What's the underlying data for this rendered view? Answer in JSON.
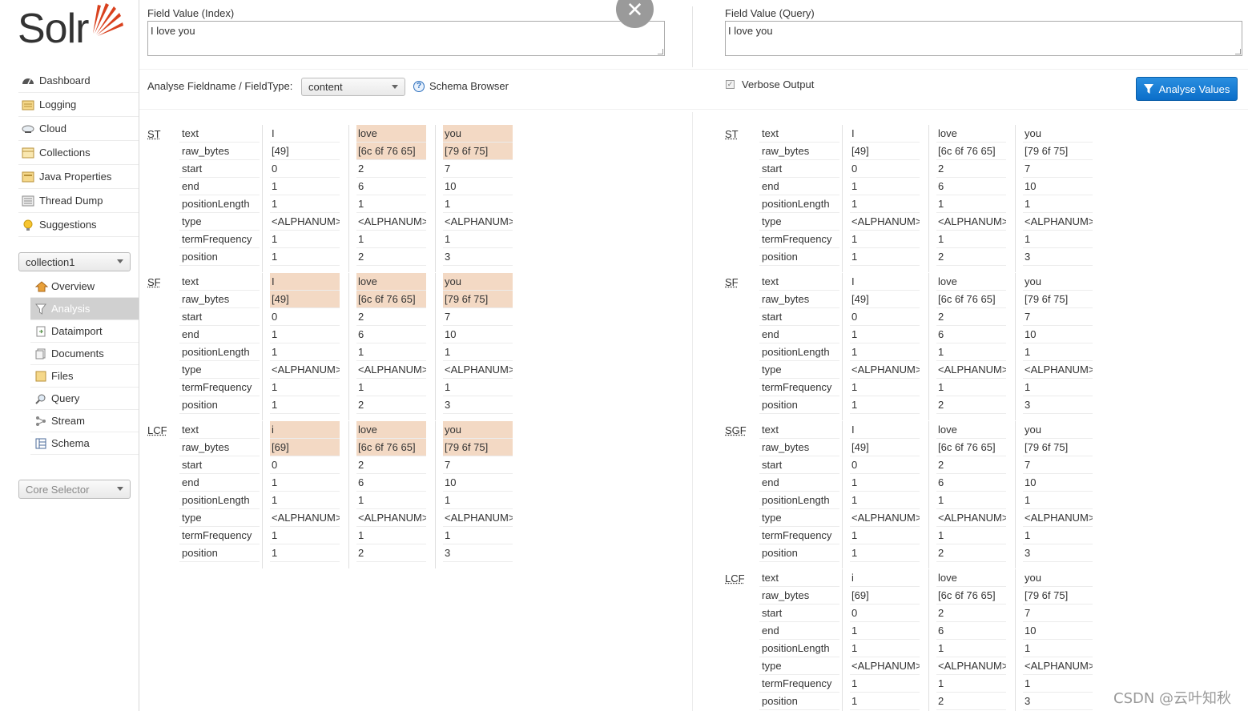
{
  "brand": {
    "logo_text": "Solr",
    "accent": "#d9411e"
  },
  "nav": [
    {
      "label": "Dashboard",
      "icon": "dashboard-icon"
    },
    {
      "label": "Logging",
      "icon": "logging-icon"
    },
    {
      "label": "Cloud",
      "icon": "cloud-icon"
    },
    {
      "label": "Collections",
      "icon": "collections-icon"
    },
    {
      "label": "Java Properties",
      "icon": "java-properties-icon"
    },
    {
      "label": "Thread Dump",
      "icon": "thread-dump-icon"
    },
    {
      "label": "Suggestions",
      "icon": "lightbulb-icon"
    }
  ],
  "collection_select": {
    "value": "collection1"
  },
  "subnav": [
    {
      "label": "Overview",
      "icon": "home-icon",
      "active": false
    },
    {
      "label": "Analysis",
      "icon": "filter-icon",
      "active": true
    },
    {
      "label": "Dataimport",
      "icon": "dataimport-icon",
      "active": false
    },
    {
      "label": "Documents",
      "icon": "documents-icon",
      "active": false
    },
    {
      "label": "Files",
      "icon": "folder-icon",
      "active": false
    },
    {
      "label": "Query",
      "icon": "magnifier-icon",
      "active": false
    },
    {
      "label": "Stream",
      "icon": "stream-icon",
      "active": false
    },
    {
      "label": "Schema",
      "icon": "schema-icon",
      "active": false
    }
  ],
  "core_selector": {
    "value": "Core Selector"
  },
  "form": {
    "index_label": "Field Value (Index)",
    "index_value": "I love you",
    "query_label": "Field Value (Query)",
    "query_value": "I love you",
    "fieldtype_label": "Analyse Fieldname / FieldType:",
    "fieldtype_value": "content",
    "schema_browser": "Schema Browser",
    "verbose_label": "Verbose Output",
    "analyse_button": "Analyse Values",
    "close_symbol": "✕"
  },
  "field_names": [
    "text",
    "raw_bytes",
    "start",
    "end",
    "positionLength",
    "type",
    "termFrequency",
    "position"
  ],
  "index_stages": [
    {
      "abbr": "ST",
      "tokens": [
        [
          "I",
          "[49]",
          "0",
          "1",
          "1",
          "<ALPHANUM>",
          "1",
          "1"
        ],
        [
          "love",
          "[6c 6f 76 65]",
          "2",
          "6",
          "1",
          "<ALPHANUM>",
          "1",
          "2"
        ],
        [
          "you",
          "[79 6f 75]",
          "7",
          "10",
          "1",
          "<ALPHANUM>",
          "1",
          "3"
        ]
      ]
    },
    {
      "abbr": "SF",
      "tokens": [
        [
          "I",
          "[49]",
          "0",
          "1",
          "1",
          "<ALPHANUM>",
          "1",
          "1"
        ],
        [
          "love",
          "[6c 6f 76 65]",
          "2",
          "6",
          "1",
          "<ALPHANUM>",
          "1",
          "2"
        ],
        [
          "you",
          "[79 6f 75]",
          "7",
          "10",
          "1",
          "<ALPHANUM>",
          "1",
          "3"
        ]
      ]
    },
    {
      "abbr": "LCF",
      "tokens": [
        [
          "i",
          "[69]",
          "0",
          "1",
          "1",
          "<ALPHANUM>",
          "1",
          "1"
        ],
        [
          "love",
          "[6c 6f 76 65]",
          "2",
          "6",
          "1",
          "<ALPHANUM>",
          "1",
          "2"
        ],
        [
          "you",
          "[79 6f 75]",
          "7",
          "10",
          "1",
          "<ALPHANUM>",
          "1",
          "3"
        ]
      ]
    }
  ],
  "query_stages": [
    {
      "abbr": "ST",
      "tokens": [
        [
          "I",
          "[49]",
          "0",
          "1",
          "1",
          "<ALPHANUM>",
          "1",
          "1"
        ],
        [
          "love",
          "[6c 6f 76 65]",
          "2",
          "6",
          "1",
          "<ALPHANUM>",
          "1",
          "2"
        ],
        [
          "you",
          "[79 6f 75]",
          "7",
          "10",
          "1",
          "<ALPHANUM>",
          "1",
          "3"
        ]
      ]
    },
    {
      "abbr": "SF",
      "tokens": [
        [
          "I",
          "[49]",
          "0",
          "1",
          "1",
          "<ALPHANUM>",
          "1",
          "1"
        ],
        [
          "love",
          "[6c 6f 76 65]",
          "2",
          "6",
          "1",
          "<ALPHANUM>",
          "1",
          "2"
        ],
        [
          "you",
          "[79 6f 75]",
          "7",
          "10",
          "1",
          "<ALPHANUM>",
          "1",
          "3"
        ]
      ]
    },
    {
      "abbr": "SGF",
      "tokens": [
        [
          "I",
          "[49]",
          "0",
          "1",
          "1",
          "<ALPHANUM>",
          "1",
          "1"
        ],
        [
          "love",
          "[6c 6f 76 65]",
          "2",
          "6",
          "1",
          "<ALPHANUM>",
          "1",
          "2"
        ],
        [
          "you",
          "[79 6f 75]",
          "7",
          "10",
          "1",
          "<ALPHANUM>",
          "1",
          "3"
        ]
      ]
    },
    {
      "abbr": "LCF",
      "tokens": [
        [
          "i",
          "[69]",
          "0",
          "1",
          "1",
          "<ALPHANUM>",
          "1",
          "1"
        ],
        [
          "love",
          "[6c 6f 76 65]",
          "2",
          "6",
          "1",
          "<ALPHANUM>",
          "1",
          "2"
        ],
        [
          "you",
          "[79 6f 75]",
          "7",
          "10",
          "1",
          "<ALPHANUM>",
          "1",
          "3"
        ]
      ]
    }
  ],
  "highlight_color": "#f3d9c4",
  "watermark": "CSDN @云叶知秋"
}
